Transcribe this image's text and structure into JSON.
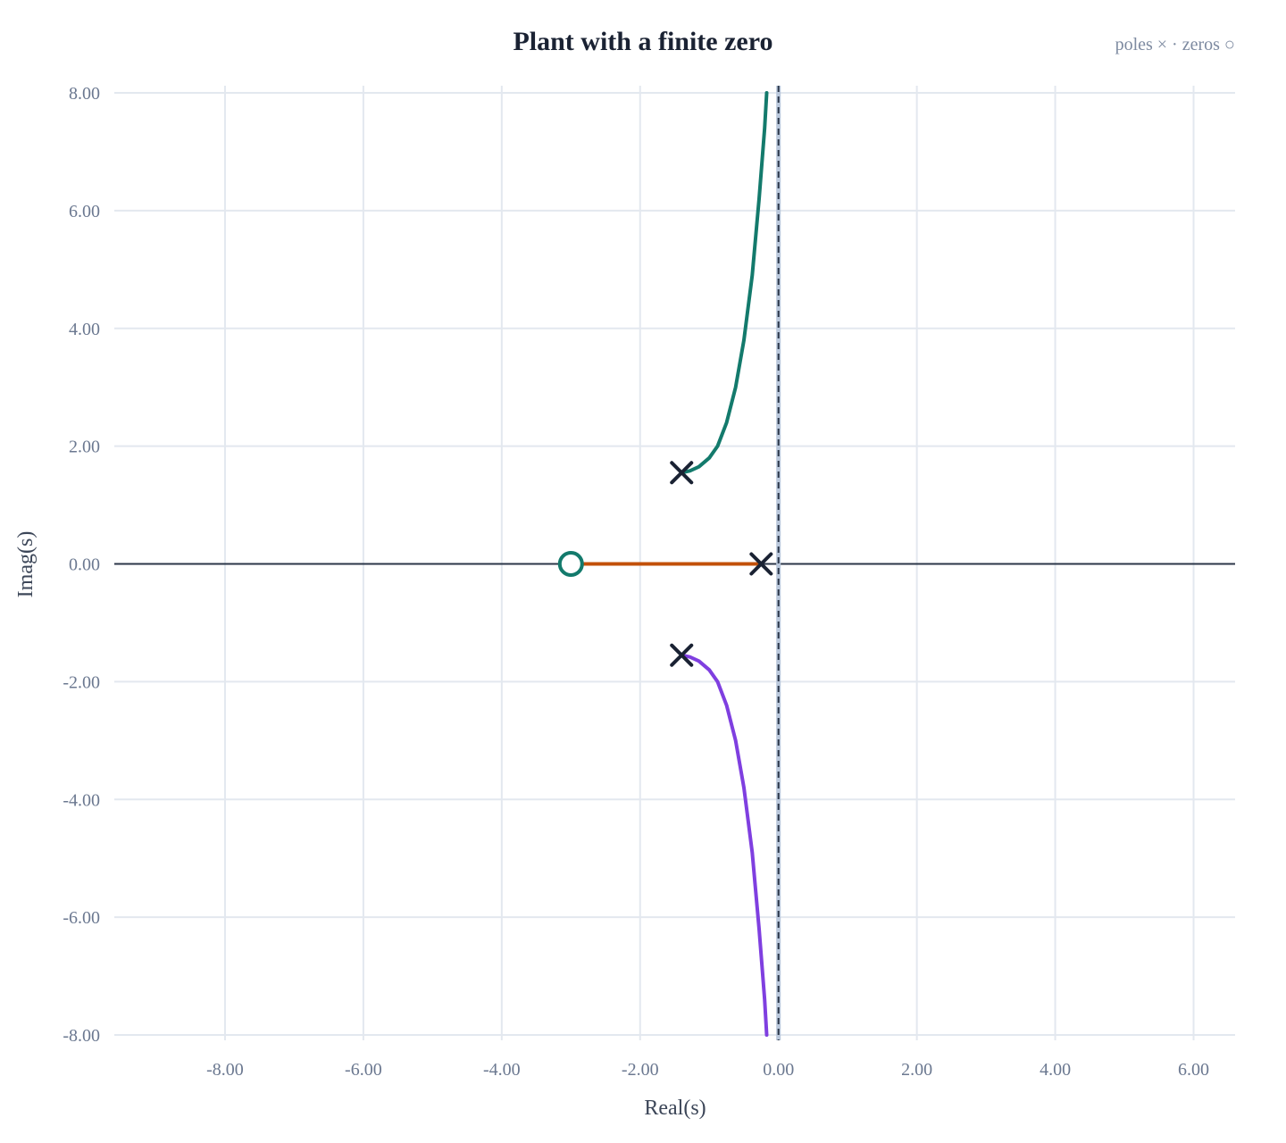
{
  "chart_data": {
    "type": "line",
    "title": "Plant with a finite zero",
    "annotation": "poles × · zeros ○",
    "xlabel": "Real(s)",
    "ylabel": "Imag(s)",
    "xlim": [
      -9.6,
      6.6
    ],
    "ylim": [
      -8,
      8
    ],
    "x_ticks": [
      -8,
      -6,
      -4,
      -2,
      0,
      2,
      4,
      6
    ],
    "y_ticks": [
      -8,
      -6,
      -4,
      -2,
      0,
      2,
      4,
      6,
      8
    ],
    "tick_format": "2 decimals",
    "grid": true,
    "stability_boundary": {
      "x": 0,
      "style": "dashed"
    },
    "poles": [
      {
        "x": -1.4,
        "y": 1.55
      },
      {
        "x": -1.4,
        "y": -1.55
      },
      {
        "x": -0.25,
        "y": 0
      }
    ],
    "zeros": [
      {
        "x": -3.0,
        "y": 0
      }
    ],
    "series": [
      {
        "color": "#137a6c",
        "points": [
          [
            -1.4,
            1.55
          ],
          [
            -1.28,
            1.58
          ],
          [
            -1.15,
            1.65
          ],
          [
            -1.0,
            1.8
          ],
          [
            -0.88,
            2.0
          ],
          [
            -0.75,
            2.4
          ],
          [
            -0.62,
            3.0
          ],
          [
            -0.5,
            3.8
          ],
          [
            -0.38,
            4.9
          ],
          [
            -0.28,
            6.2
          ],
          [
            -0.2,
            7.4
          ],
          [
            -0.17,
            8.0
          ]
        ]
      },
      {
        "color": "#c2500a",
        "points": [
          [
            -0.25,
            0
          ],
          [
            -1.0,
            0
          ],
          [
            -2.0,
            0
          ],
          [
            -3.0,
            0
          ]
        ]
      },
      {
        "color": "#7f3fe0",
        "points": [
          [
            -1.4,
            -1.55
          ],
          [
            -1.28,
            -1.58
          ],
          [
            -1.15,
            -1.65
          ],
          [
            -1.0,
            -1.8
          ],
          [
            -0.88,
            -2.0
          ],
          [
            -0.75,
            -2.4
          ],
          [
            -0.62,
            -3.0
          ],
          [
            -0.5,
            -3.8
          ],
          [
            -0.38,
            -4.9
          ],
          [
            -0.28,
            -6.2
          ],
          [
            -0.2,
            -7.4
          ],
          [
            -0.17,
            -8.0
          ]
        ]
      }
    ],
    "colors": {
      "pole": "#1a2233",
      "zero": "#137a6c",
      "axis": "#2b3648",
      "grid": "#e3e8ef"
    }
  }
}
